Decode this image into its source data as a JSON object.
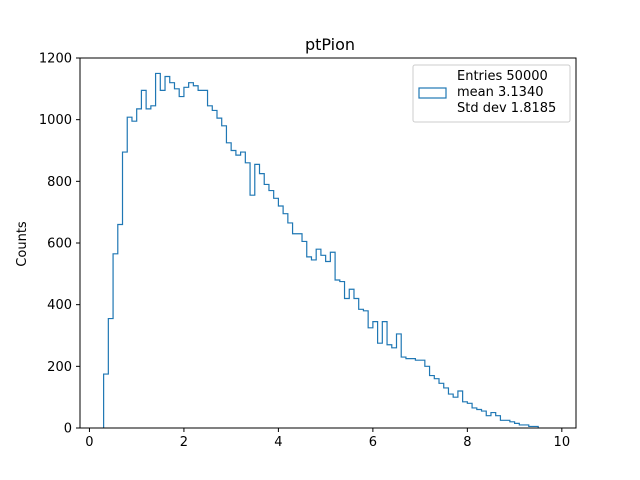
{
  "chart_data": {
    "type": "histogram",
    "title": "ptPion",
    "xlabel": "",
    "ylabel": "Counts",
    "xlim": [
      -0.2,
      10.3
    ],
    "ylim": [
      0,
      1200
    ],
    "xticks": [
      0,
      2,
      4,
      6,
      8,
      10
    ],
    "yticks": [
      0,
      200,
      400,
      600,
      800,
      1000,
      1200
    ],
    "bin_width": 0.1,
    "bin_start": 0.3,
    "color": "#1f77b4",
    "legend": {
      "position": "top-right",
      "lines": [
        "Entries 50000",
        "mean 3.1340",
        "Std dev 1.8185"
      ]
    },
    "values": [
      175,
      355,
      565,
      660,
      895,
      1008,
      995,
      1035,
      1095,
      1035,
      1045,
      1150,
      1095,
      1140,
      1120,
      1100,
      1075,
      1105,
      1120,
      1110,
      1095,
      1095,
      1045,
      1030,
      1005,
      980,
      925,
      900,
      885,
      895,
      860,
      755,
      855,
      825,
      790,
      770,
      745,
      720,
      695,
      665,
      630,
      630,
      605,
      555,
      545,
      580,
      560,
      540,
      570,
      480,
      475,
      420,
      450,
      420,
      385,
      380,
      325,
      345,
      275,
      345,
      270,
      260,
      305,
      230,
      225,
      225,
      220,
      220,
      200,
      170,
      160,
      145,
      130,
      110,
      100,
      120,
      85,
      80,
      65,
      60,
      55,
      40,
      50,
      40,
      25,
      25,
      20,
      15,
      10,
      10,
      5,
      5
    ]
  }
}
